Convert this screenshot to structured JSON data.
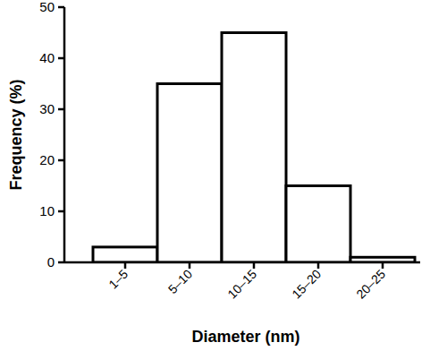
{
  "chart_data": {
    "type": "bar",
    "x_label": "Diameter (nm)",
    "y_label": "Frequency (%)",
    "categories": [
      "1–5",
      "5–10",
      "10–15",
      "15–20",
      "20–25"
    ],
    "values": [
      3,
      35,
      45,
      15,
      1
    ],
    "color": "#ffffff",
    "ylim": [
      0,
      50
    ],
    "yticks": [
      0,
      10,
      20,
      30,
      40,
      50
    ],
    "grid": false
  }
}
